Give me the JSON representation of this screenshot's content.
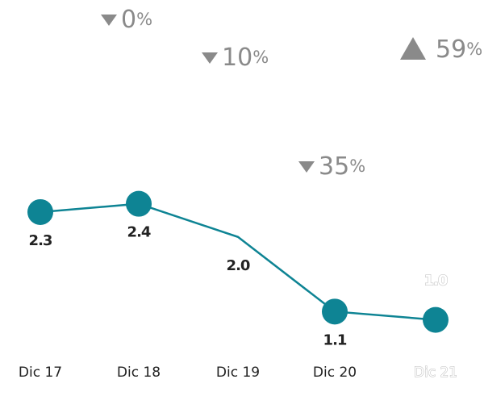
{
  "chart_data": {
    "type": "line",
    "categories": [
      "Dic 17",
      "Dic 18",
      "Dic 19",
      "Dic 20",
      "Dic 21"
    ],
    "values": [
      2.3,
      2.4,
      2.0,
      1.1,
      1.0
    ],
    "value_labels": [
      "2.3",
      "2.4",
      "2.0",
      "1.1",
      "1.0"
    ],
    "markers": [
      true,
      true,
      false,
      true,
      true
    ],
    "color": "#0e8494",
    "ylim": [
      0.5,
      3
    ],
    "annotations": [
      {
        "value": 0,
        "unit": "%",
        "direction": "down"
      },
      {
        "value": 10,
        "unit": "%",
        "direction": "down"
      },
      {
        "value": 35,
        "unit": "%",
        "direction": "down"
      },
      {
        "value": 59,
        "unit": "%",
        "direction": "up"
      }
    ]
  }
}
